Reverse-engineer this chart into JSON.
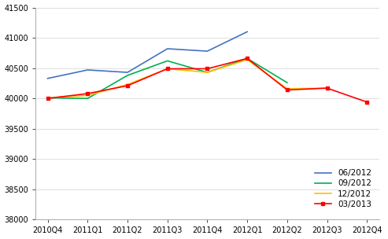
{
  "categories": [
    "2010Q4",
    "2011Q1",
    "2011Q2",
    "2011Q3",
    "2011Q4",
    "2012Q1",
    "2012Q2",
    "2012Q3",
    "2012Q4"
  ],
  "series": {
    "06/2012": [
      40330,
      40470,
      40430,
      40820,
      40780,
      41100,
      null,
      null,
      null
    ],
    "09/2012": [
      40010,
      40000,
      40380,
      40620,
      40430,
      40660,
      40260,
      null,
      null
    ],
    "12/2012": [
      40010,
      40050,
      40230,
      40490,
      40430,
      40640,
      40160,
      40170,
      null
    ],
    "03/2013": [
      40000,
      40080,
      40210,
      40490,
      40490,
      40660,
      40140,
      40170,
      39940
    ]
  },
  "colors": {
    "06/2012": "#4472C4",
    "09/2012": "#00B050",
    "12/2012": "#FFC000",
    "03/2013": "#FF0000"
  },
  "markers": {
    "06/2012": "none",
    "09/2012": "none",
    "12/2012": "none",
    "03/2013": "s"
  },
  "ylim": [
    38000,
    41500
  ],
  "yticks": [
    38000,
    38500,
    39000,
    39500,
    40000,
    40500,
    41000,
    41500
  ],
  "background_color": "#ffffff",
  "linewidth": 1.2,
  "tick_fontsize": 7.0,
  "legend_fontsize": 7.5
}
